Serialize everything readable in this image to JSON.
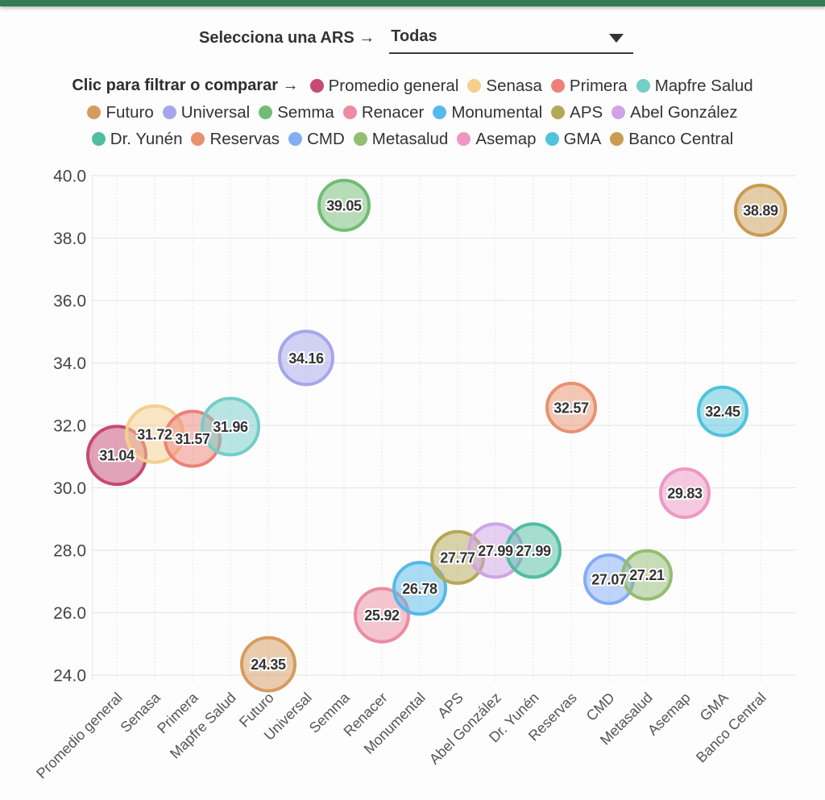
{
  "page": {
    "bar_color": "#367a58",
    "background": "#fdfdfd"
  },
  "controls": {
    "select_label": "Selecciona una ARS →",
    "select_value": "Todas",
    "caret_icon": "dropdown-caret"
  },
  "legend": {
    "prefix_label": "Clic para filtrar o comparar →",
    "rows": [
      [
        0,
        1,
        2,
        3
      ],
      [
        4,
        5,
        6,
        7,
        8,
        9,
        10
      ],
      [
        11,
        12,
        13,
        14,
        15,
        16,
        17
      ]
    ]
  },
  "chart_data": {
    "type": "scatter",
    "title": "",
    "xlabel": "",
    "ylabel": "",
    "ylim": [
      24.0,
      40.0
    ],
    "grid": true,
    "y_ticks": [
      24.0,
      26.0,
      28.0,
      30.0,
      32.0,
      34.0,
      36.0,
      38.0,
      40.0
    ],
    "y_tick_labels": [
      "24.0",
      "26.0",
      "28.0",
      "30.0",
      "32.0",
      "34.0",
      "36.0",
      "38.0",
      "40.0"
    ],
    "categories": [
      "Promedio general",
      "Senasa",
      "Primera",
      "Mapfre Salud",
      "Futuro",
      "Universal",
      "Semma",
      "Renacer",
      "Monumental",
      "APS",
      "Abel González",
      "Dr. Yunén",
      "Reservas",
      "CMD",
      "Metasalud",
      "Asemap",
      "GMA",
      "Banco Central"
    ],
    "points": [
      {
        "name": "Promedio general",
        "value": 31.04,
        "label": "31.04",
        "color": "#c64a72",
        "radius": 36
      },
      {
        "name": "Senasa",
        "value": 31.72,
        "label": "31.72",
        "color": "#f5cf8e",
        "radius": 35
      },
      {
        "name": "Primera",
        "value": 31.57,
        "label": "31.57",
        "color": "#ed8178",
        "radius": 34
      },
      {
        "name": "Mapfre Salud",
        "value": 31.96,
        "label": "31.96",
        "color": "#74cdc9",
        "radius": 35
      },
      {
        "name": "Futuro",
        "value": 24.35,
        "label": "24.35",
        "color": "#d69b5e",
        "radius": 33
      },
      {
        "name": "Universal",
        "value": 34.16,
        "label": "34.16",
        "color": "#a6a6ea",
        "radius": 33
      },
      {
        "name": "Semma",
        "value": 39.05,
        "label": "39.05",
        "color": "#71bd73",
        "radius": 31
      },
      {
        "name": "Renacer",
        "value": 25.92,
        "label": "25.92",
        "color": "#ec8ba2",
        "radius": 33
      },
      {
        "name": "Monumental",
        "value": 26.78,
        "label": "26.78",
        "color": "#55b9ea",
        "radius": 32
      },
      {
        "name": "APS",
        "value": 27.77,
        "label": "27.77",
        "color": "#b3a855",
        "radius": 32
      },
      {
        "name": "Abel González",
        "value": 27.99,
        "label": "27.99",
        "color": "#cfa3e6",
        "radius": 33
      },
      {
        "name": "Dr. Yunén",
        "value": 27.99,
        "label": "27.99",
        "color": "#4fbda1",
        "radius": 33
      },
      {
        "name": "Reservas",
        "value": 32.57,
        "label": "32.57",
        "color": "#e9916f",
        "radius": 30
      },
      {
        "name": "CMD",
        "value": 27.07,
        "label": "27.07",
        "color": "#82acf4",
        "radius": 30
      },
      {
        "name": "Metasalud",
        "value": 27.21,
        "label": "27.21",
        "color": "#93bd71",
        "radius": 30
      },
      {
        "name": "Asemap",
        "value": 29.83,
        "label": "29.83",
        "color": "#ee97c3",
        "radius": 30
      },
      {
        "name": "GMA",
        "value": 32.45,
        "label": "32.45",
        "color": "#4fc3dc",
        "radius": 30
      },
      {
        "name": "Banco Central",
        "value": 38.89,
        "label": "38.89",
        "color": "#c99c52",
        "radius": 31
      }
    ]
  }
}
